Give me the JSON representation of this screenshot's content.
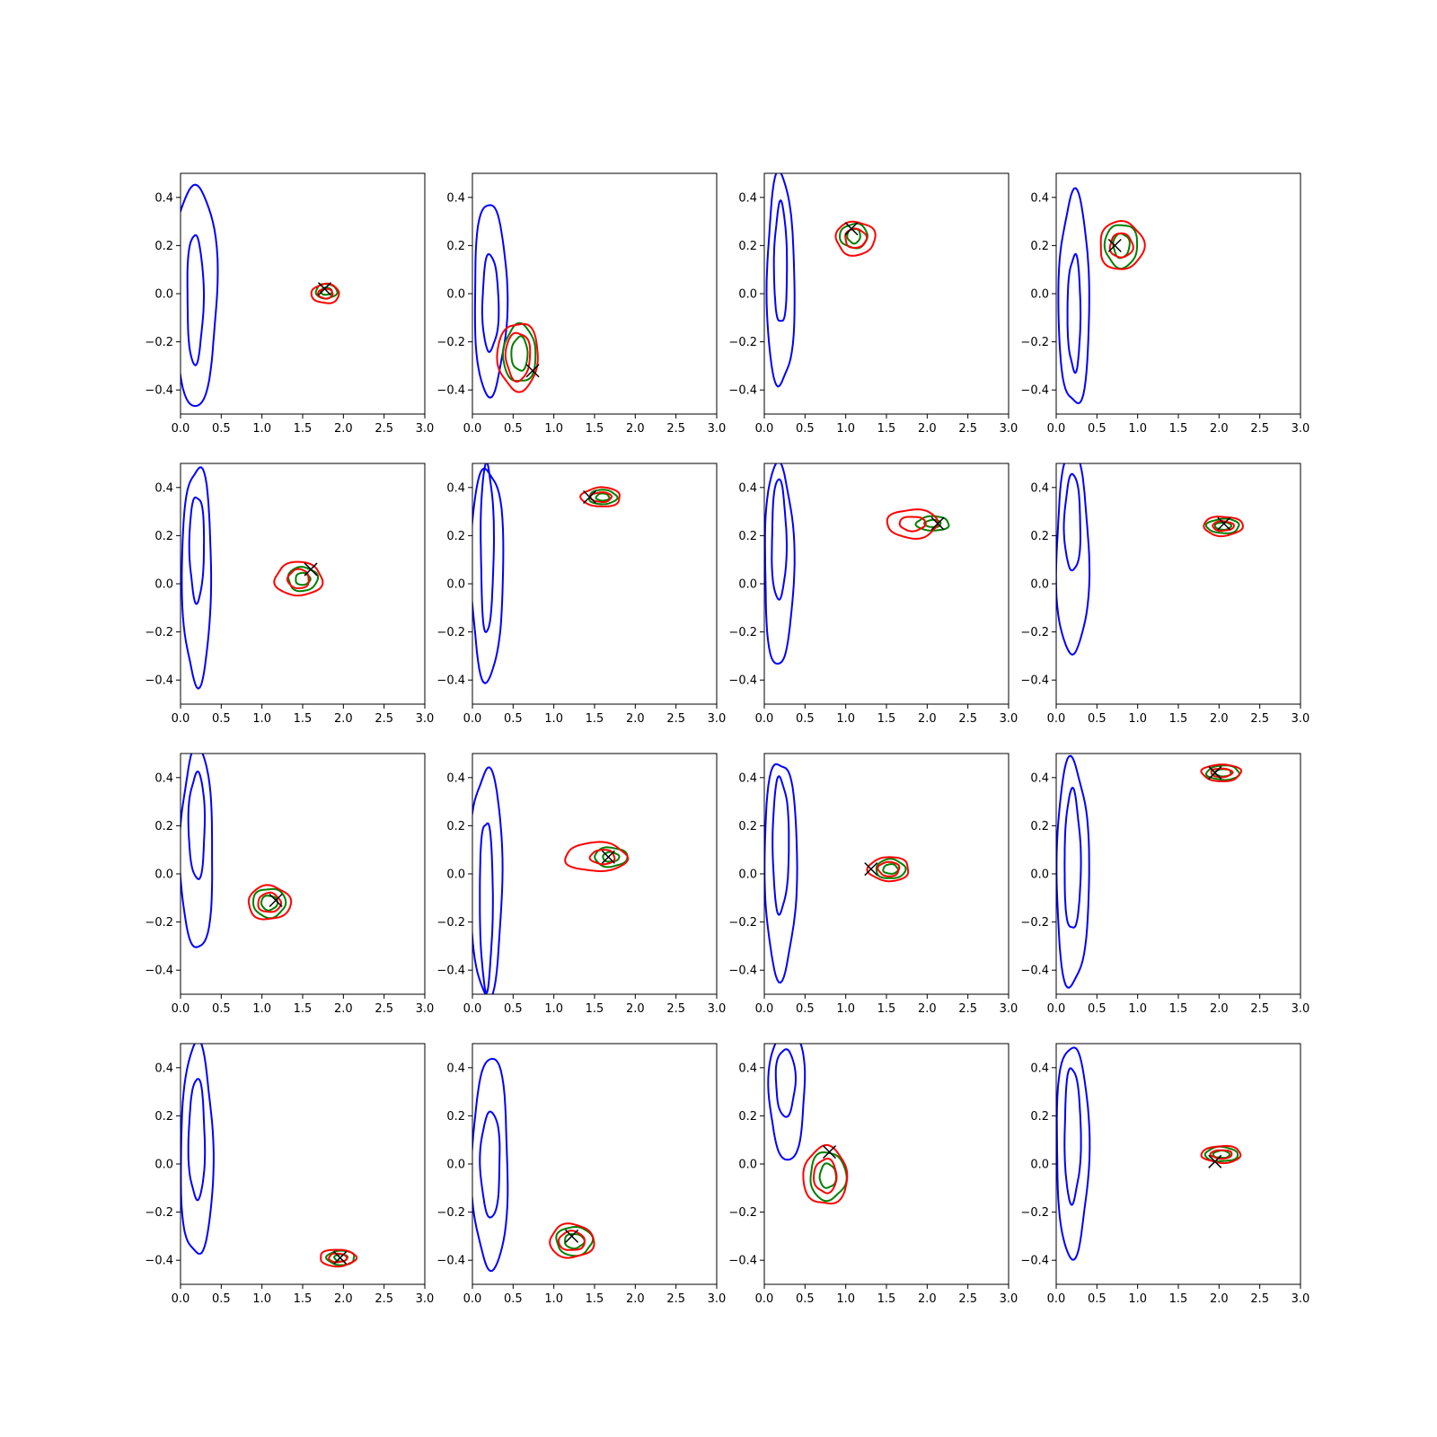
{
  "figure": {
    "rows": 4,
    "cols": 4,
    "colors": {
      "blue": "#0000ff",
      "green": "#008000",
      "red": "#ff0000",
      "marker": "#000000",
      "axes": "#000000",
      "background": "#ffffff"
    }
  },
  "chart_data": [
    {
      "type": "contour",
      "xlim": [
        0,
        3
      ],
      "ylim": [
        -0.5,
        0.5
      ],
      "xticks": [
        "0.0",
        "0.5",
        "1.0",
        "1.5",
        "2.0",
        "2.5",
        "3.0"
      ],
      "yticks": [
        "−0.4",
        "−0.2",
        "0.0",
        "0.2",
        "0.4"
      ],
      "grid": false,
      "blue": [
        {
          "cx": 0.18,
          "cy": 0.0,
          "rx": 0.27,
          "ry": 0.46
        },
        {
          "cx": 0.18,
          "cy": -0.02,
          "rx": 0.1,
          "ry": 0.27
        }
      ],
      "green": [
        {
          "cx": 1.79,
          "cy": 0.01,
          "rx": 0.13,
          "ry": 0.03
        },
        {
          "cx": 1.79,
          "cy": 0.01,
          "rx": 0.07,
          "ry": 0.015
        }
      ],
      "red": [
        {
          "cx": 1.78,
          "cy": 0.0,
          "rx": 0.17,
          "ry": 0.04
        },
        {
          "cx": 1.78,
          "cy": 0.0,
          "rx": 0.09,
          "ry": 0.02
        }
      ],
      "marker": {
        "x": 1.77,
        "y": 0.02
      }
    },
    {
      "type": "contour",
      "xlim": [
        0,
        3
      ],
      "ylim": [
        -0.5,
        0.5
      ],
      "xticks": [
        "0.0",
        "0.5",
        "1.0",
        "1.5",
        "2.0",
        "2.5",
        "3.0"
      ],
      "yticks": [
        "−0.4",
        "−0.2",
        "0.0",
        "0.2",
        "0.4"
      ],
      "grid": false,
      "blue": [
        {
          "cx": 0.22,
          "cy": -0.02,
          "rx": 0.2,
          "ry": 0.4
        },
        {
          "cx": 0.22,
          "cy": -0.04,
          "rx": 0.1,
          "ry": 0.2
        }
      ],
      "green": [
        {
          "cx": 0.58,
          "cy": -0.25,
          "rx": 0.2,
          "ry": 0.12
        },
        {
          "cx": 0.58,
          "cy": -0.25,
          "rx": 0.1,
          "ry": 0.07
        }
      ],
      "red": [
        {
          "cx": 0.56,
          "cy": -0.26,
          "rx": 0.25,
          "ry": 0.14
        },
        {
          "cx": 0.56,
          "cy": -0.26,
          "rx": 0.15,
          "ry": 0.1
        }
      ],
      "marker": {
        "x": 0.74,
        "y": -0.32
      }
    },
    {
      "type": "contour",
      "xlim": [
        0,
        3
      ],
      "ylim": [
        -0.5,
        0.5
      ],
      "xticks": [
        "0.0",
        "0.5",
        "1.0",
        "1.5",
        "2.0",
        "2.5",
        "3.0"
      ],
      "yticks": [
        "−0.4",
        "−0.2",
        "0.0",
        "0.2",
        "0.4"
      ],
      "grid": false,
      "blue": [
        {
          "cx": 0.2,
          "cy": 0.05,
          "rx": 0.17,
          "ry": 0.44
        },
        {
          "cx": 0.2,
          "cy": 0.12,
          "rx": 0.08,
          "ry": 0.25
        }
      ],
      "green": [
        {
          "cx": 1.1,
          "cy": 0.24,
          "rx": 0.17,
          "ry": 0.05
        },
        {
          "cx": 1.1,
          "cy": 0.24,
          "rx": 0.08,
          "ry": 0.03
        }
      ],
      "red": [
        {
          "cx": 1.12,
          "cy": 0.23,
          "rx": 0.24,
          "ry": 0.07
        },
        {
          "cx": 1.12,
          "cy": 0.23,
          "rx": 0.13,
          "ry": 0.04
        }
      ],
      "marker": {
        "x": 1.07,
        "y": 0.27
      }
    },
    {
      "type": "contour",
      "xlim": [
        0,
        3
      ],
      "ylim": [
        -0.5,
        0.5
      ],
      "xticks": [
        "0.0",
        "0.5",
        "1.0",
        "1.5",
        "2.0",
        "2.5",
        "3.0"
      ],
      "yticks": [
        "−0.4",
        "−0.2",
        "0.0",
        "0.2",
        "0.4"
      ],
      "grid": false,
      "blue": [
        {
          "cx": 0.22,
          "cy": -0.03,
          "rx": 0.19,
          "ry": 0.44
        },
        {
          "cx": 0.22,
          "cy": -0.08,
          "rx": 0.08,
          "ry": 0.24
        }
      ],
      "green": [
        {
          "cx": 0.8,
          "cy": 0.2,
          "rx": 0.2,
          "ry": 0.09
        },
        {
          "cx": 0.8,
          "cy": 0.2,
          "rx": 0.1,
          "ry": 0.05
        }
      ],
      "red": [
        {
          "cx": 0.8,
          "cy": 0.2,
          "rx": 0.27,
          "ry": 0.1
        },
        {
          "cx": 0.8,
          "cy": 0.2,
          "rx": 0.14,
          "ry": 0.05
        }
      ],
      "marker": {
        "x": 0.72,
        "y": 0.2
      }
    },
    {
      "type": "contour",
      "xlim": [
        0,
        3
      ],
      "ylim": [
        -0.5,
        0.5
      ],
      "xticks": [
        "0.0",
        "0.5",
        "1.0",
        "1.5",
        "2.0",
        "2.5",
        "3.0"
      ],
      "yticks": [
        "−0.4",
        "−0.2",
        "0.0",
        "0.2",
        "0.4"
      ],
      "grid": false,
      "blue": [
        {
          "cx": 0.2,
          "cy": 0.04,
          "rx": 0.18,
          "ry": 0.45
        },
        {
          "cx": 0.2,
          "cy": 0.15,
          "rx": 0.09,
          "ry": 0.22
        }
      ],
      "green": [
        {
          "cx": 1.5,
          "cy": 0.02,
          "rx": 0.18,
          "ry": 0.05
        },
        {
          "cx": 1.5,
          "cy": 0.02,
          "rx": 0.09,
          "ry": 0.025
        }
      ],
      "red": [
        {
          "cx": 1.45,
          "cy": 0.02,
          "rx": 0.29,
          "ry": 0.07
        },
        {
          "cx": 1.45,
          "cy": 0.02,
          "rx": 0.13,
          "ry": 0.04
        }
      ],
      "marker": {
        "x": 1.6,
        "y": 0.06
      }
    },
    {
      "type": "contour",
      "xlim": [
        0,
        3
      ],
      "ylim": [
        -0.5,
        0.5
      ],
      "xticks": [
        "0.0",
        "0.5",
        "1.0",
        "1.5",
        "2.0",
        "2.5",
        "3.0"
      ],
      "yticks": [
        "−0.4",
        "−0.2",
        "0.0",
        "0.2",
        "0.4"
      ],
      "grid": false,
      "blue": [
        {
          "cx": 0.18,
          "cy": 0.05,
          "rx": 0.2,
          "ry": 0.44
        },
        {
          "cx": 0.18,
          "cy": 0.15,
          "rx": 0.08,
          "ry": 0.35
        }
      ],
      "green": [
        {
          "cx": 1.6,
          "cy": 0.36,
          "rx": 0.17,
          "ry": 0.03
        },
        {
          "cx": 1.6,
          "cy": 0.36,
          "rx": 0.08,
          "ry": 0.015
        }
      ],
      "red": [
        {
          "cx": 1.58,
          "cy": 0.36,
          "rx": 0.24,
          "ry": 0.04
        },
        {
          "cx": 1.58,
          "cy": 0.36,
          "rx": 0.13,
          "ry": 0.02
        }
      ],
      "marker": {
        "x": 1.44,
        "y": 0.36
      }
    },
    {
      "type": "contour",
      "xlim": [
        0,
        3
      ],
      "ylim": [
        -0.5,
        0.5
      ],
      "xticks": [
        "0.0",
        "0.5",
        "1.0",
        "1.5",
        "2.0",
        "2.5",
        "3.0"
      ],
      "yticks": [
        "−0.4",
        "−0.2",
        "0.0",
        "0.2",
        "0.4"
      ],
      "grid": false,
      "blue": [
        {
          "cx": 0.18,
          "cy": 0.08,
          "rx": 0.18,
          "ry": 0.42
        },
        {
          "cx": 0.18,
          "cy": 0.18,
          "rx": 0.09,
          "ry": 0.25
        }
      ],
      "green": [
        {
          "cx": 2.07,
          "cy": 0.25,
          "rx": 0.2,
          "ry": 0.03
        },
        {
          "cx": 2.07,
          "cy": 0.25,
          "rx": 0.1,
          "ry": 0.015
        }
      ],
      "red": [
        {
          "cx": 1.82,
          "cy": 0.25,
          "rx": 0.31,
          "ry": 0.06
        },
        {
          "cx": 1.82,
          "cy": 0.25,
          "rx": 0.16,
          "ry": 0.03
        }
      ],
      "marker": {
        "x": 2.13,
        "y": 0.25
      }
    },
    {
      "type": "contour",
      "xlim": [
        0,
        3
      ],
      "ylim": [
        -0.5,
        0.5
      ],
      "xticks": [
        "0.0",
        "0.5",
        "1.0",
        "1.5",
        "2.0",
        "2.5",
        "3.0"
      ],
      "yticks": [
        "−0.4",
        "−0.2",
        "0.0",
        "0.2",
        "0.4"
      ],
      "grid": false,
      "blue": [
        {
          "cx": 0.2,
          "cy": 0.12,
          "rx": 0.2,
          "ry": 0.42
        },
        {
          "cx": 0.2,
          "cy": 0.25,
          "rx": 0.1,
          "ry": 0.2
        }
      ],
      "green": [
        {
          "cx": 2.05,
          "cy": 0.24,
          "rx": 0.2,
          "ry": 0.03
        },
        {
          "cx": 2.05,
          "cy": 0.24,
          "rx": 0.1,
          "ry": 0.015
        }
      ],
      "red": [
        {
          "cx": 2.05,
          "cy": 0.24,
          "rx": 0.24,
          "ry": 0.04
        },
        {
          "cx": 2.05,
          "cy": 0.24,
          "rx": 0.13,
          "ry": 0.02
        }
      ],
      "marker": {
        "x": 2.06,
        "y": 0.25
      }
    },
    {
      "type": "contour",
      "xlim": [
        0,
        3
      ],
      "ylim": [
        -0.5,
        0.5
      ],
      "xticks": [
        "0.0",
        "0.5",
        "1.0",
        "1.5",
        "2.0",
        "2.5",
        "3.0"
      ],
      "yticks": [
        "−0.4",
        "−0.2",
        "0.0",
        "0.2",
        "0.4"
      ],
      "grid": false,
      "blue": [
        {
          "cx": 0.2,
          "cy": 0.1,
          "rx": 0.2,
          "ry": 0.42
        },
        {
          "cx": 0.2,
          "cy": 0.2,
          "rx": 0.1,
          "ry": 0.22
        }
      ],
      "green": [
        {
          "cx": 1.09,
          "cy": -0.12,
          "rx": 0.2,
          "ry": 0.06
        },
        {
          "cx": 1.09,
          "cy": -0.12,
          "rx": 0.1,
          "ry": 0.03
        }
      ],
      "red": [
        {
          "cx": 1.09,
          "cy": -0.12,
          "rx": 0.26,
          "ry": 0.07
        },
        {
          "cx": 1.09,
          "cy": -0.12,
          "rx": 0.14,
          "ry": 0.04
        }
      ],
      "marker": {
        "x": 1.17,
        "y": -0.11
      }
    },
    {
      "type": "contour",
      "xlim": [
        0,
        3
      ],
      "ylim": [
        -0.5,
        0.5
      ],
      "xticks": [
        "0.0",
        "0.5",
        "1.0",
        "1.5",
        "2.0",
        "2.5",
        "3.0"
      ],
      "yticks": [
        "−0.4",
        "−0.2",
        "0.0",
        "0.2",
        "0.4"
      ],
      "grid": false,
      "blue": [
        {
          "cx": 0.17,
          "cy": -0.03,
          "rx": 0.2,
          "ry": 0.47
        },
        {
          "cx": 0.17,
          "cy": -0.12,
          "rx": 0.08,
          "ry": 0.35
        }
      ],
      "green": [
        {
          "cx": 1.7,
          "cy": 0.07,
          "rx": 0.2,
          "ry": 0.04
        },
        {
          "cx": 1.7,
          "cy": 0.07,
          "rx": 0.1,
          "ry": 0.02
        }
      ],
      "red": [
        {
          "cx": 1.52,
          "cy": 0.07,
          "rx": 0.38,
          "ry": 0.06
        },
        {
          "cx": 1.6,
          "cy": 0.07,
          "rx": 0.15,
          "ry": 0.03
        }
      ],
      "marker": {
        "x": 1.67,
        "y": 0.07
      }
    },
    {
      "type": "contour",
      "xlim": [
        0,
        3
      ],
      "ylim": [
        -0.5,
        0.5
      ],
      "xticks": [
        "0.0",
        "0.5",
        "1.0",
        "1.5",
        "2.0",
        "2.5",
        "3.0"
      ],
      "yticks": [
        "−0.4",
        "−0.2",
        "0.0",
        "0.2",
        "0.4"
      ],
      "grid": false,
      "blue": [
        {
          "cx": 0.2,
          "cy": 0.03,
          "rx": 0.2,
          "ry": 0.45
        },
        {
          "cx": 0.2,
          "cy": 0.12,
          "rx": 0.1,
          "ry": 0.28
        }
      ],
      "green": [
        {
          "cx": 1.55,
          "cy": 0.02,
          "rx": 0.18,
          "ry": 0.04
        },
        {
          "cx": 1.55,
          "cy": 0.02,
          "rx": 0.09,
          "ry": 0.02
        }
      ],
      "red": [
        {
          "cx": 1.53,
          "cy": 0.02,
          "rx": 0.25,
          "ry": 0.05
        },
        {
          "cx": 1.53,
          "cy": 0.02,
          "rx": 0.13,
          "ry": 0.03
        }
      ],
      "marker": {
        "x": 1.31,
        "y": 0.02
      }
    },
    {
      "type": "contour",
      "xlim": [
        0,
        3
      ],
      "ylim": [
        -0.5,
        0.5
      ],
      "xticks": [
        "0.0",
        "0.5",
        "1.0",
        "1.5",
        "2.0",
        "2.5",
        "3.0"
      ],
      "yticks": [
        "−0.4",
        "−0.2",
        "0.0",
        "0.2",
        "0.4"
      ],
      "grid": false,
      "blue": [
        {
          "cx": 0.2,
          "cy": 0.0,
          "rx": 0.2,
          "ry": 0.47
        },
        {
          "cx": 0.2,
          "cy": 0.05,
          "rx": 0.1,
          "ry": 0.29
        }
      ],
      "green": [
        {
          "cx": 2.05,
          "cy": 0.42,
          "rx": 0.2,
          "ry": 0.03
        },
        {
          "cx": 2.05,
          "cy": 0.42,
          "rx": 0.1,
          "ry": 0.015
        }
      ],
      "red": [
        {
          "cx": 2.03,
          "cy": 0.42,
          "rx": 0.24,
          "ry": 0.035
        },
        {
          "cx": 2.03,
          "cy": 0.42,
          "rx": 0.13,
          "ry": 0.018
        }
      ],
      "marker": {
        "x": 1.95,
        "y": 0.42
      }
    },
    {
      "type": "contour",
      "xlim": [
        0,
        3
      ],
      "ylim": [
        -0.5,
        0.5
      ],
      "xticks": [
        "0.0",
        "0.5",
        "1.0",
        "1.5",
        "2.0",
        "2.5",
        "3.0"
      ],
      "yticks": [
        "−0.4",
        "−0.2",
        "0.0",
        "0.2",
        "0.4"
      ],
      "grid": false,
      "blue": [
        {
          "cx": 0.2,
          "cy": 0.05,
          "rx": 0.2,
          "ry": 0.44
        },
        {
          "cx": 0.2,
          "cy": 0.1,
          "rx": 0.1,
          "ry": 0.25
        }
      ],
      "green": [
        {
          "cx": 1.97,
          "cy": -0.39,
          "rx": 0.17,
          "ry": 0.03
        },
        {
          "cx": 1.97,
          "cy": -0.39,
          "rx": 0.08,
          "ry": 0.015
        }
      ],
      "red": [
        {
          "cx": 1.93,
          "cy": -0.39,
          "rx": 0.22,
          "ry": 0.035
        },
        {
          "cx": 1.93,
          "cy": -0.39,
          "rx": 0.11,
          "ry": 0.018
        }
      ],
      "marker": {
        "x": 1.96,
        "y": -0.39
      }
    },
    {
      "type": "contour",
      "xlim": [
        0,
        3
      ],
      "ylim": [
        -0.5,
        0.5
      ],
      "xticks": [
        "0.0",
        "0.5",
        "1.0",
        "1.5",
        "2.0",
        "2.5",
        "3.0"
      ],
      "yticks": [
        "−0.4",
        "−0.2",
        "0.0",
        "0.2",
        "0.4"
      ],
      "grid": false,
      "blue": [
        {
          "cx": 0.22,
          "cy": 0.0,
          "rx": 0.22,
          "ry": 0.44
        },
        {
          "cx": 0.22,
          "cy": 0.0,
          "rx": 0.12,
          "ry": 0.22
        }
      ],
      "green": [
        {
          "cx": 1.25,
          "cy": -0.32,
          "rx": 0.22,
          "ry": 0.06
        },
        {
          "cx": 1.25,
          "cy": -0.32,
          "rx": 0.12,
          "ry": 0.03
        }
      ],
      "red": [
        {
          "cx": 1.22,
          "cy": -0.32,
          "rx": 0.27,
          "ry": 0.07
        },
        {
          "cx": 1.22,
          "cy": -0.32,
          "rx": 0.16,
          "ry": 0.04
        }
      ],
      "marker": {
        "x": 1.22,
        "y": -0.3
      }
    },
    {
      "type": "contour",
      "xlim": [
        0,
        3
      ],
      "ylim": [
        -0.5,
        0.5
      ],
      "xticks": [
        "0.0",
        "0.5",
        "1.0",
        "1.5",
        "2.0",
        "2.5",
        "3.0"
      ],
      "yticks": [
        "−0.4",
        "−0.2",
        "0.0",
        "0.2",
        "0.4"
      ],
      "grid": false,
      "blue": [
        {
          "cx": 0.28,
          "cy": 0.3,
          "rx": 0.22,
          "ry": 0.28
        },
        {
          "cx": 0.26,
          "cy": 0.34,
          "rx": 0.12,
          "ry": 0.14
        }
      ],
      "green": [
        {
          "cx": 0.78,
          "cy": -0.05,
          "rx": 0.22,
          "ry": 0.1
        },
        {
          "cx": 0.78,
          "cy": -0.05,
          "rx": 0.1,
          "ry": 0.05
        }
      ],
      "red": [
        {
          "cx": 0.75,
          "cy": -0.05,
          "rx": 0.27,
          "ry": 0.12
        },
        {
          "cx": 0.75,
          "cy": -0.05,
          "rx": 0.14,
          "ry": 0.07
        }
      ],
      "marker": {
        "x": 0.8,
        "y": 0.05
      }
    },
    {
      "type": "contour",
      "xlim": [
        0,
        3
      ],
      "ylim": [
        -0.5,
        0.5
      ],
      "xticks": [
        "0.0",
        "0.5",
        "1.0",
        "1.5",
        "2.0",
        "2.5",
        "3.0"
      ],
      "yticks": [
        "−0.4",
        "−0.2",
        "0.0",
        "0.2",
        "0.4"
      ],
      "grid": false,
      "blue": [
        {
          "cx": 0.2,
          "cy": 0.06,
          "rx": 0.2,
          "ry": 0.44
        },
        {
          "cx": 0.2,
          "cy": 0.12,
          "rx": 0.1,
          "ry": 0.28
        }
      ],
      "green": [
        {
          "cx": 2.03,
          "cy": 0.04,
          "rx": 0.2,
          "ry": 0.03
        },
        {
          "cx": 2.03,
          "cy": 0.04,
          "rx": 0.1,
          "ry": 0.015
        }
      ],
      "red": [
        {
          "cx": 2.03,
          "cy": 0.04,
          "rx": 0.24,
          "ry": 0.035
        },
        {
          "cx": 2.03,
          "cy": 0.04,
          "rx": 0.13,
          "ry": 0.018
        }
      ],
      "marker": {
        "x": 1.95,
        "y": 0.01
      }
    }
  ]
}
